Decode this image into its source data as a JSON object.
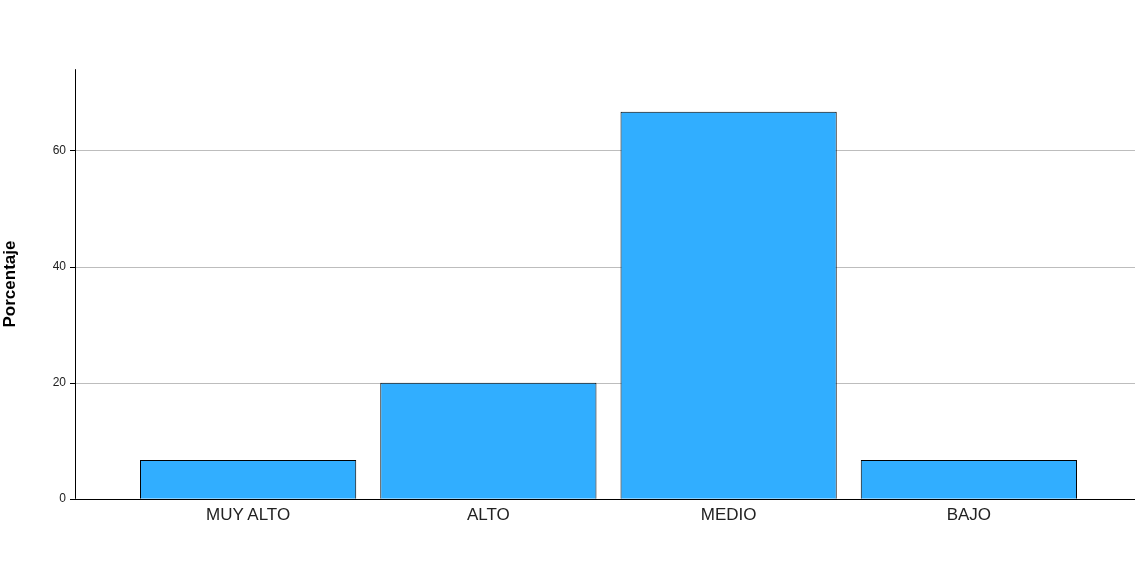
{
  "chart_data": {
    "type": "bar",
    "ylabel": "Porcentaje",
    "categories": [
      "MUY ALTO",
      "ALTO",
      "MEDIO",
      "BAJO"
    ],
    "values": [
      6.67,
      20,
      66.67,
      6.67
    ],
    "color": "#31aeff",
    "ylim": [
      0,
      74
    ],
    "yticks": [
      0,
      20,
      40,
      60
    ],
    "grid": "y",
    "legend": false
  }
}
